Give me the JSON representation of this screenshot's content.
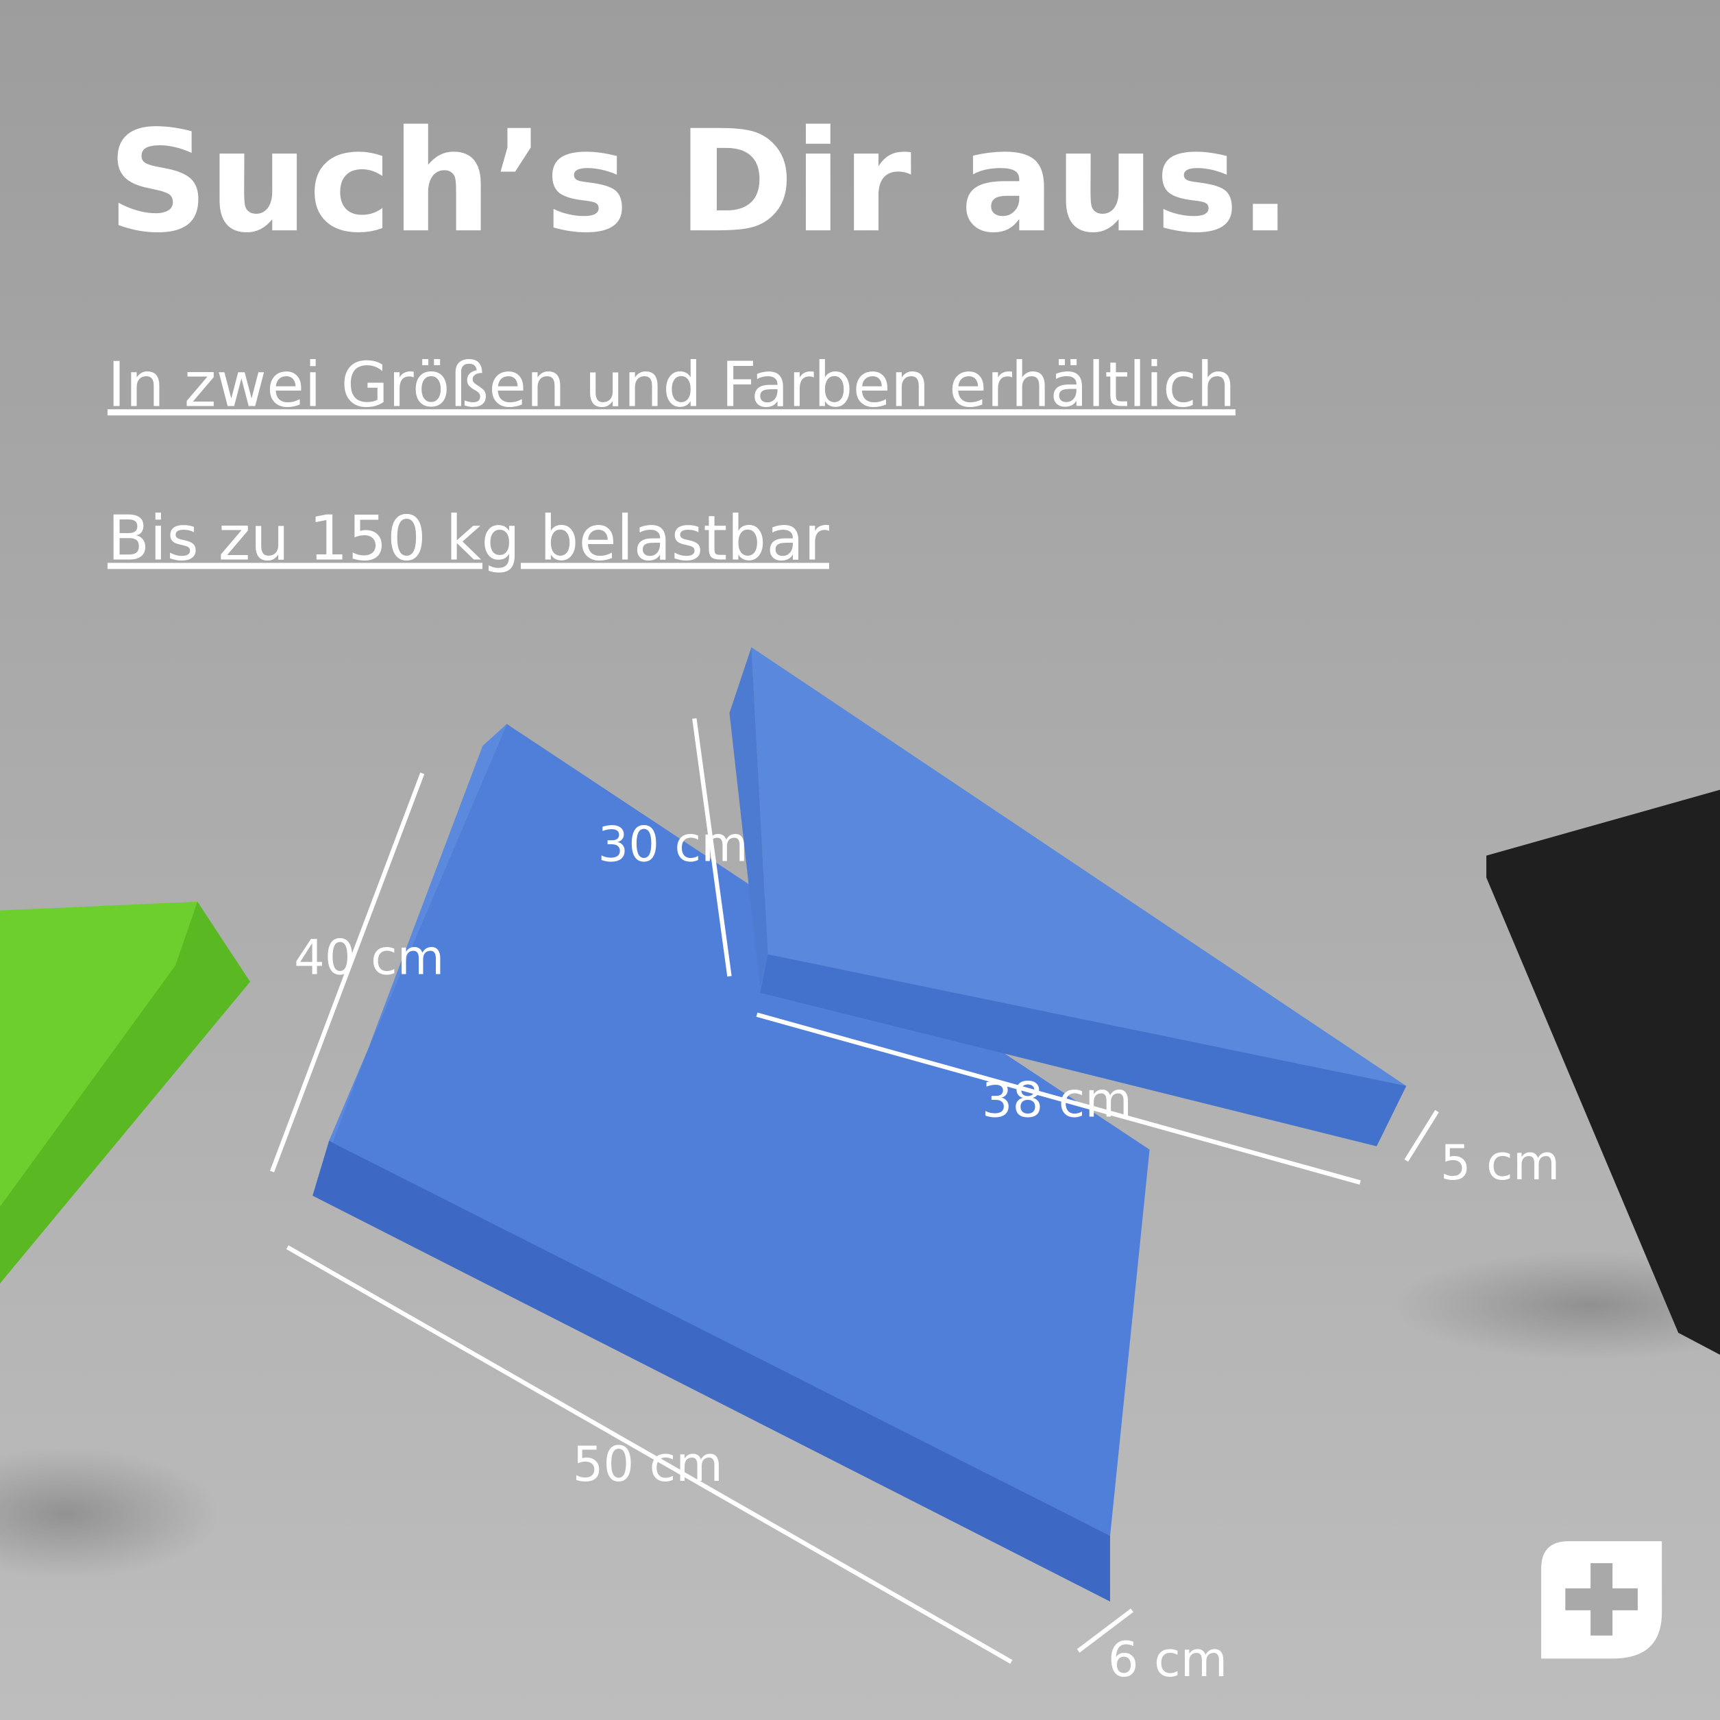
{
  "header": {
    "title": "Such’s Dir aus."
  },
  "features": [
    "In zwei Größen und Farben erhältlich",
    "Bis zu 150 kg belastbar"
  ],
  "dimensions": {
    "large_width": "40 cm",
    "large_length": "50 cm",
    "large_height": "6 cm",
    "small_width": "30 cm",
    "small_length": "38 cm",
    "small_height": "5 cm"
  }
}
